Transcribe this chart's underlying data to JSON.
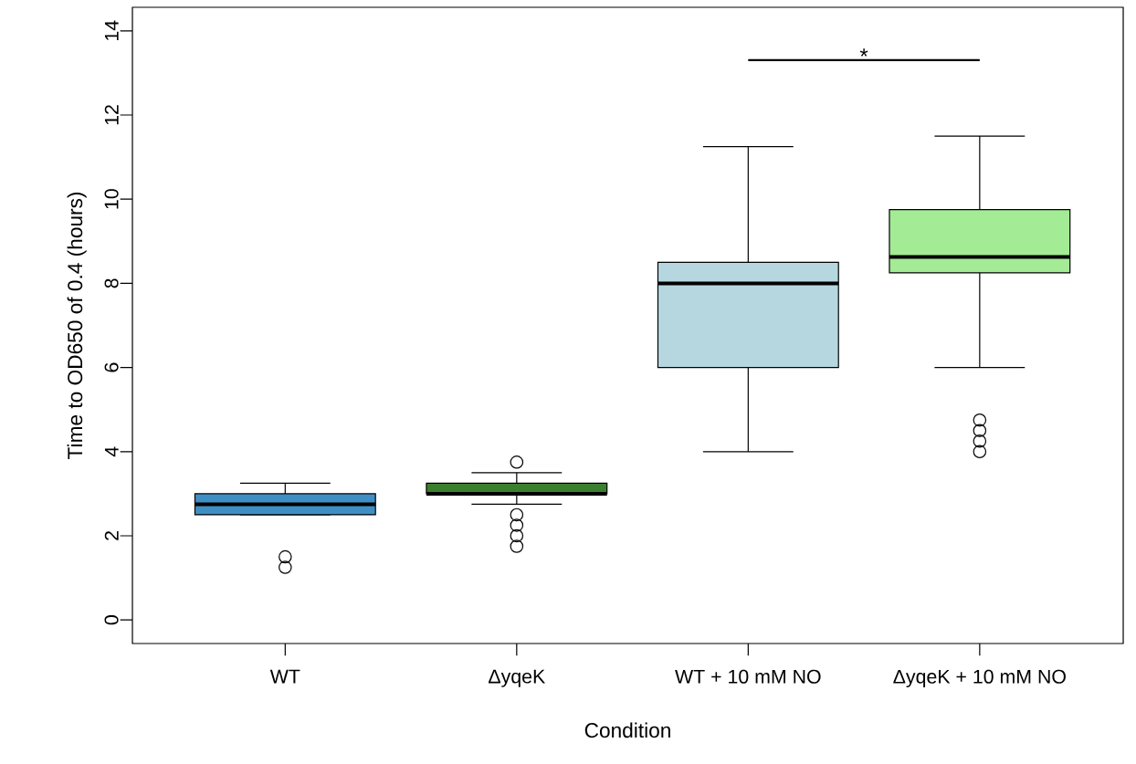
{
  "chart_data": {
    "type": "box",
    "categories": [
      "WT",
      "ΔyqeK",
      "WT + 10 mM NO",
      "ΔyqeK + 10 mM NO"
    ],
    "colors": [
      "#3f8fc5",
      "#3b7f2e",
      "#b6d7df",
      "#a3eb95"
    ],
    "boxes": [
      {
        "low": 2.5,
        "q1": 2.5,
        "median": 2.75,
        "q3": 3.0,
        "high": 3.25,
        "outliers": [
          1.5,
          1.25
        ]
      },
      {
        "low": 2.75,
        "q1": 3.0,
        "median": 3.0,
        "q3": 3.25,
        "high": 3.5,
        "outliers": [
          3.75,
          2.5,
          2.25,
          2.0,
          1.75
        ]
      },
      {
        "low": 4.0,
        "q1": 6.0,
        "median": 8.0,
        "q3": 8.5,
        "high": 11.25
      },
      {
        "low": 6.0,
        "q1": 8.25,
        "median": 8.625,
        "q3": 9.75,
        "high": 11.5,
        "outliers": [
          4.75,
          4.5,
          4.25,
          4.0
        ]
      }
    ],
    "xlabel": "Condition",
    "ylabel": "Time to OD650 of 0.4 (hours)",
    "ylim": [
      -0.56,
      14.56
    ],
    "yticks": [
      0,
      2,
      4,
      6,
      8,
      10,
      12,
      14
    ],
    "annotations": [
      "*"
    ]
  }
}
